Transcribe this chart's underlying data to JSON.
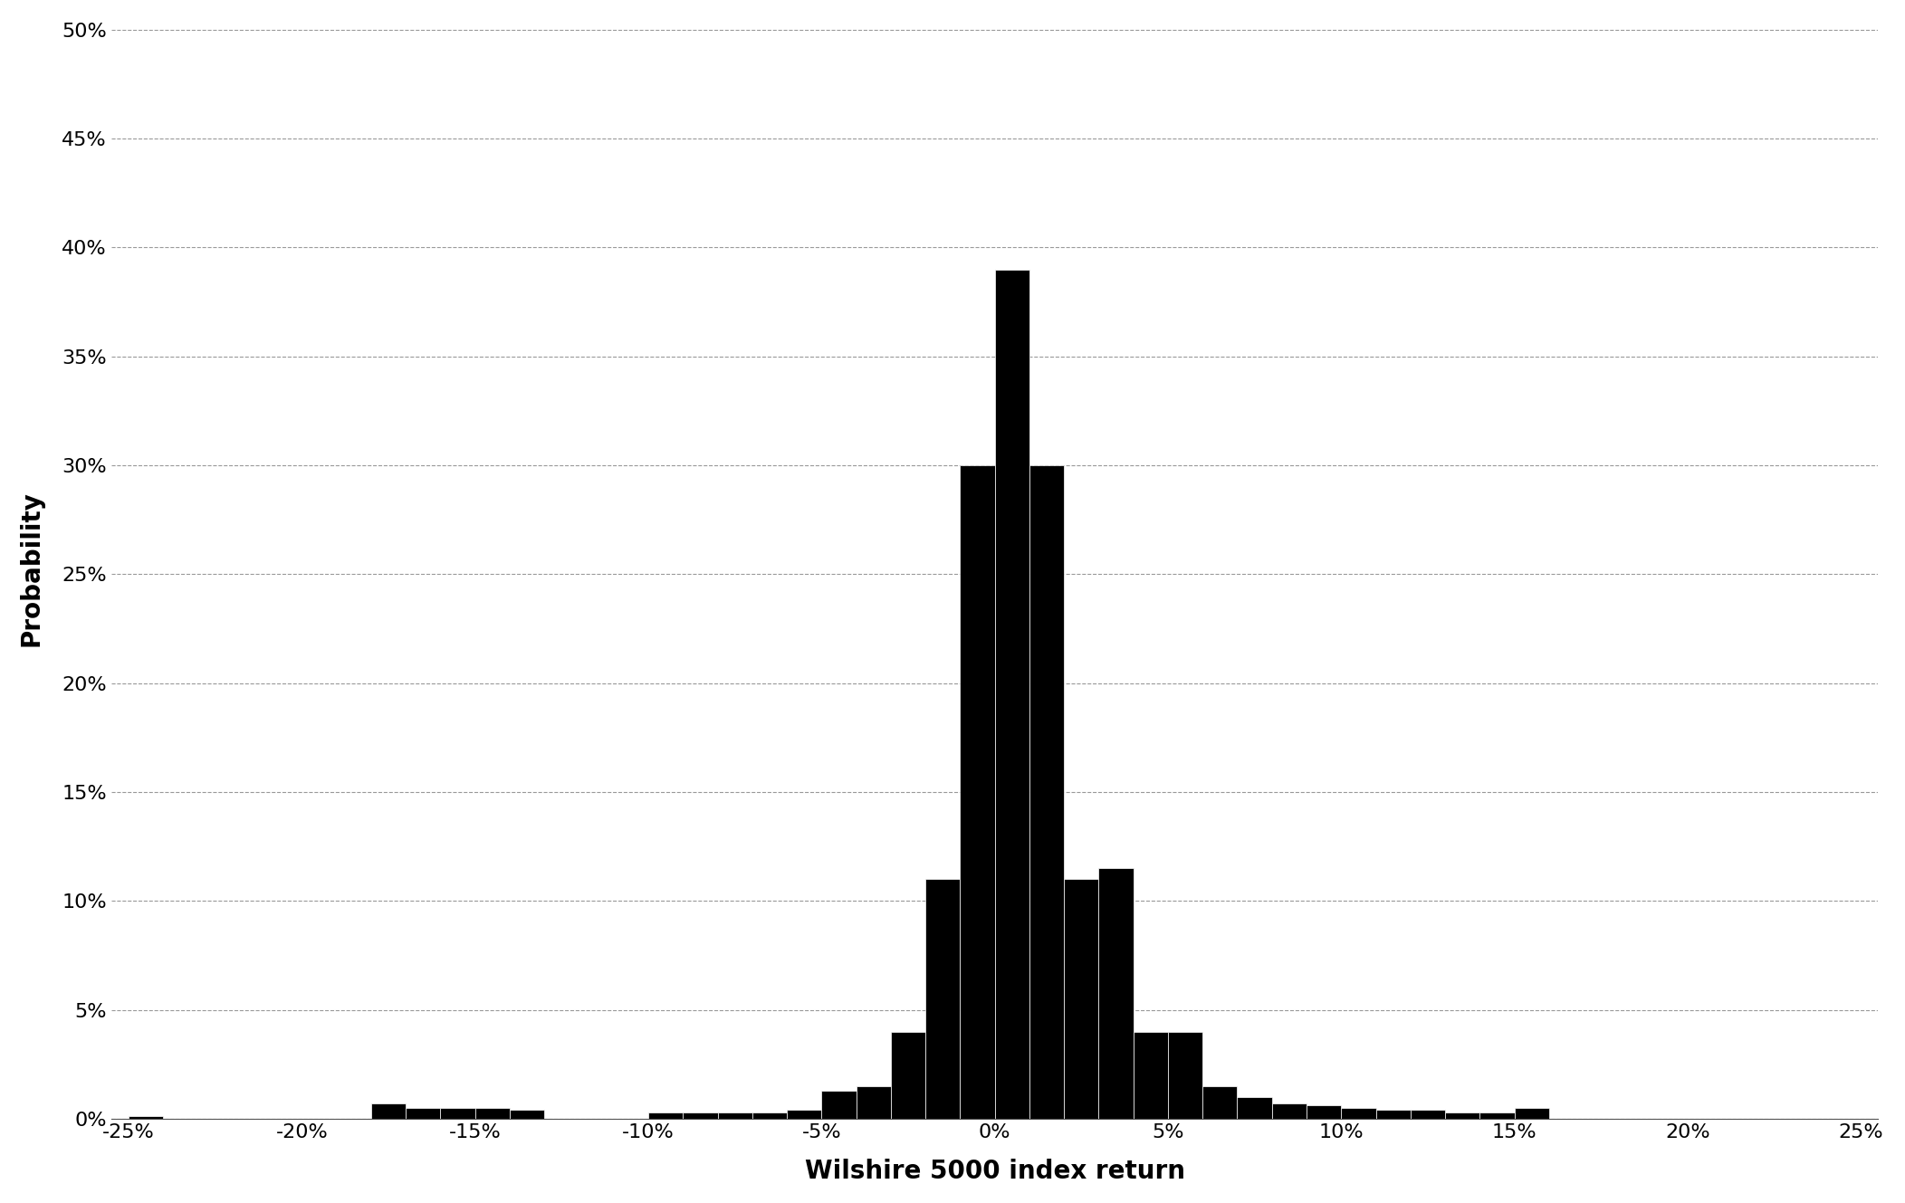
{
  "title": "",
  "xlabel": "Wilshire 5000 index return",
  "ylabel": "Probability",
  "bar_color": "#000000",
  "edge_color": "#ffffff",
  "background_color": "#ffffff",
  "xlim": [
    -0.255,
    0.255
  ],
  "ylim": [
    0,
    0.505
  ],
  "xticks": [
    -0.25,
    -0.2,
    -0.15,
    -0.1,
    -0.05,
    0.0,
    0.05,
    0.1,
    0.15,
    0.2,
    0.25
  ],
  "yticks": [
    0.0,
    0.05,
    0.1,
    0.15,
    0.2,
    0.25,
    0.3,
    0.35,
    0.4,
    0.45,
    0.5
  ],
  "bin_edges_left": [
    -0.25,
    -0.24,
    -0.23,
    -0.22,
    -0.21,
    -0.2,
    -0.19,
    -0.18,
    -0.17,
    -0.16,
    -0.15,
    -0.14,
    -0.13,
    -0.12,
    -0.11,
    -0.1,
    -0.09,
    -0.08,
    -0.07,
    -0.06,
    -0.05,
    -0.04,
    -0.03,
    -0.02,
    -0.01,
    0.0,
    0.01,
    0.02,
    0.03,
    0.04,
    0.05,
    0.06,
    0.07,
    0.08,
    0.09,
    0.1,
    0.11,
    0.12,
    0.13,
    0.14,
    0.15,
    0.16,
    0.17,
    0.18,
    0.19,
    0.2,
    0.21,
    0.22,
    0.23,
    0.24
  ],
  "bin_values": [
    0.001,
    0.0,
    0.0,
    0.0,
    0.0,
    0.0,
    0.0,
    0.007,
    0.005,
    0.005,
    0.005,
    0.004,
    0.0,
    0.0,
    0.0,
    0.003,
    0.003,
    0.003,
    0.003,
    0.004,
    0.013,
    0.015,
    0.04,
    0.11,
    0.3,
    0.39,
    0.3,
    0.11,
    0.115,
    0.04,
    0.04,
    0.015,
    0.01,
    0.007,
    0.006,
    0.005,
    0.004,
    0.004,
    0.003,
    0.003,
    0.005,
    0.0,
    0.0,
    0.0,
    0.0,
    0.0,
    0.0,
    0.0,
    0.0,
    0.0
  ],
  "bin_width": 0.01,
  "grid_color": "#999999",
  "grid_linestyle": "--",
  "grid_linewidth": 0.8,
  "xlabel_fontsize": 20,
  "ylabel_fontsize": 20,
  "tick_fontsize": 16,
  "xlabel_fontweight": "bold",
  "ylabel_fontweight": "bold"
}
